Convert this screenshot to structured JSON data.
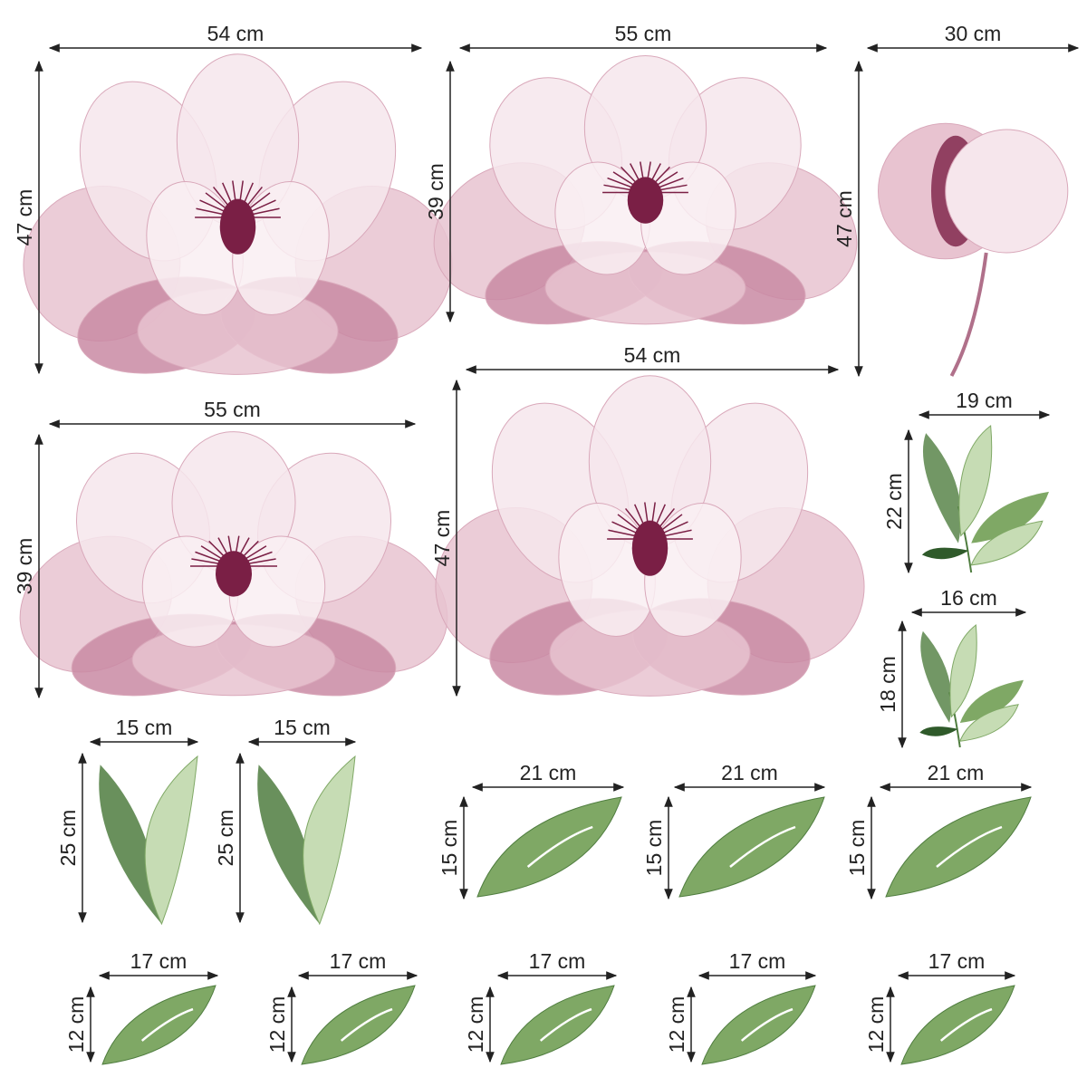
{
  "colors": {
    "petal_light": "#f6e6ec",
    "petal_mid": "#e8c3d0",
    "petal_dark": "#c98aa3",
    "stamen": "#7a1f45",
    "leaf_dark": "#4f7d3f",
    "leaf_mid": "#7fa865",
    "leaf_light": "#c6dcb4",
    "dimension_line": "#222222"
  },
  "items": [
    {
      "kind": "flower",
      "width_label": "54 cm",
      "height_label": "47 cm"
    },
    {
      "kind": "flower",
      "width_label": "55 cm",
      "height_label": "39 cm"
    },
    {
      "kind": "bud",
      "width_label": "30 cm",
      "height_label": "47 cm"
    },
    {
      "kind": "flower",
      "width_label": "55 cm",
      "height_label": "39 cm"
    },
    {
      "kind": "flower",
      "width_label": "54 cm",
      "height_label": "47 cm"
    },
    {
      "kind": "leaf-sprig",
      "width_label": "19 cm",
      "height_label": "22 cm"
    },
    {
      "kind": "leaf-sprig",
      "width_label": "16 cm",
      "height_label": "18 cm"
    },
    {
      "kind": "leaf-pair",
      "width_label": "15 cm",
      "height_label": "25 cm"
    },
    {
      "kind": "leaf-pair",
      "width_label": "15 cm",
      "height_label": "25 cm"
    },
    {
      "kind": "leaf",
      "width_label": "21 cm",
      "height_label": "15 cm"
    },
    {
      "kind": "leaf",
      "width_label": "21 cm",
      "height_label": "15 cm"
    },
    {
      "kind": "leaf",
      "width_label": "21 cm",
      "height_label": "15 cm"
    },
    {
      "kind": "leaf",
      "width_label": "17 cm",
      "height_label": "12 cm"
    },
    {
      "kind": "leaf",
      "width_label": "17 cm",
      "height_label": "12 cm"
    },
    {
      "kind": "leaf",
      "width_label": "17 cm",
      "height_label": "12 cm"
    },
    {
      "kind": "leaf",
      "width_label": "17 cm",
      "height_label": "12 cm"
    },
    {
      "kind": "leaf",
      "width_label": "17 cm",
      "height_label": "12 cm"
    }
  ]
}
